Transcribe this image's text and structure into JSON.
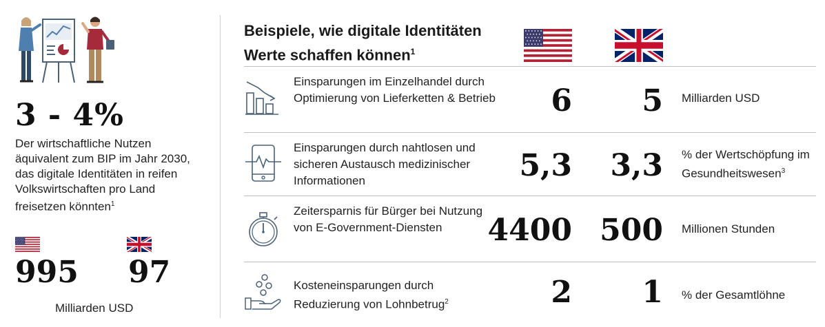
{
  "left": {
    "headline": "3 - 4%",
    "description": "Der wirtschaftliche Nutzen äquivalent zum BIP im Jahr 2030, das digitale Identitäten in reifen Volkswirtschaften pro Land freisetzen könnten",
    "description_footnote": "1",
    "us_value": "995",
    "uk_value": "97",
    "unit": "Milliarden USD"
  },
  "right": {
    "title_line1": "Beispiele, wie digitale Identitäten",
    "title_line2": "Werte schaffen können",
    "title_footnote": "1",
    "rows": [
      {
        "icon": "bar-chart-down-icon",
        "desc": "Einsparungen im Einzelhandel durch Optimierung von Lieferketten & Betrieb",
        "footnote": "",
        "us": "6",
        "uk": "5",
        "unit": "Milliarden USD",
        "unit_footnote": ""
      },
      {
        "icon": "tablet-heartbeat-icon",
        "desc": "Einsparungen durch nahtlosen und sicheren Austausch medizinischer Informationen",
        "footnote": "",
        "us": "5,3",
        "uk": "3,3",
        "unit": "% der Wertschöpfung im Gesundheitswesen",
        "unit_footnote": "3"
      },
      {
        "icon": "stopwatch-icon",
        "desc": "Zeitersparnis für Bürger bei Nutzung von E-Government-Diensten",
        "footnote": "",
        "us": "4400",
        "uk": "500",
        "unit": "Millionen Stunden",
        "unit_footnote": ""
      },
      {
        "icon": "hand-coins-icon",
        "desc": "Kosteneinsparungen durch Reduzierung von Lohnbetrug",
        "footnote": "2",
        "us": "2",
        "uk": "1",
        "unit": "% der Gesamtlöhne",
        "unit_footnote": ""
      }
    ]
  },
  "colors": {
    "us_red": "#b22234",
    "us_blue": "#3c3b6e",
    "uk_blue": "#012169",
    "uk_red": "#c8102e",
    "icon_stroke": "#4a6178",
    "shirt_red": "#a52a3a",
    "jacket_blue": "#4f7fae"
  }
}
